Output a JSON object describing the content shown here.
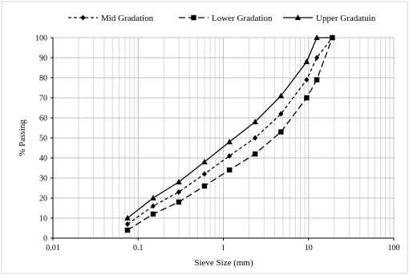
{
  "chart_data": {
    "type": "line",
    "x_scale": "log",
    "xlim": [
      0.01,
      100
    ],
    "ylim": [
      0,
      100
    ],
    "grid": true,
    "legend_position": "top",
    "xlabel": "Sieve Size (mm)",
    "ylabel": "% Passing",
    "x_ticks": [
      "0.01",
      "0.1",
      "1",
      "10",
      "100"
    ],
    "y_ticks": [
      "0",
      "10",
      "20",
      "30",
      "40",
      "50",
      "60",
      "70",
      "80",
      "90",
      "100"
    ],
    "series": [
      {
        "name": "Mid Gradation",
        "line_style": "dashed",
        "marker": "diamond",
        "x": [
          0.075,
          0.15,
          0.3,
          0.6,
          1.18,
          2.36,
          4.75,
          9.5,
          12.5,
          19
        ],
        "y": [
          7,
          16,
          23,
          32,
          41,
          50,
          62,
          79,
          90,
          100
        ]
      },
      {
        "name": "Lower Gradation",
        "line_style": "long-dash",
        "marker": "square",
        "x": [
          0.075,
          0.15,
          0.3,
          0.6,
          1.18,
          2.36,
          4.75,
          9.5,
          12.5,
          19
        ],
        "y": [
          4,
          12,
          18,
          26,
          34,
          42,
          53,
          70,
          79,
          100
        ]
      },
      {
        "name": "Upper Gradatuin",
        "line_style": "solid",
        "marker": "triangle",
        "x": [
          0.075,
          0.15,
          0.3,
          0.6,
          1.18,
          2.36,
          4.75,
          9.5,
          12.5,
          19
        ],
        "y": [
          10,
          20,
          28,
          38,
          48,
          58,
          71,
          88,
          100,
          100
        ]
      }
    ]
  }
}
